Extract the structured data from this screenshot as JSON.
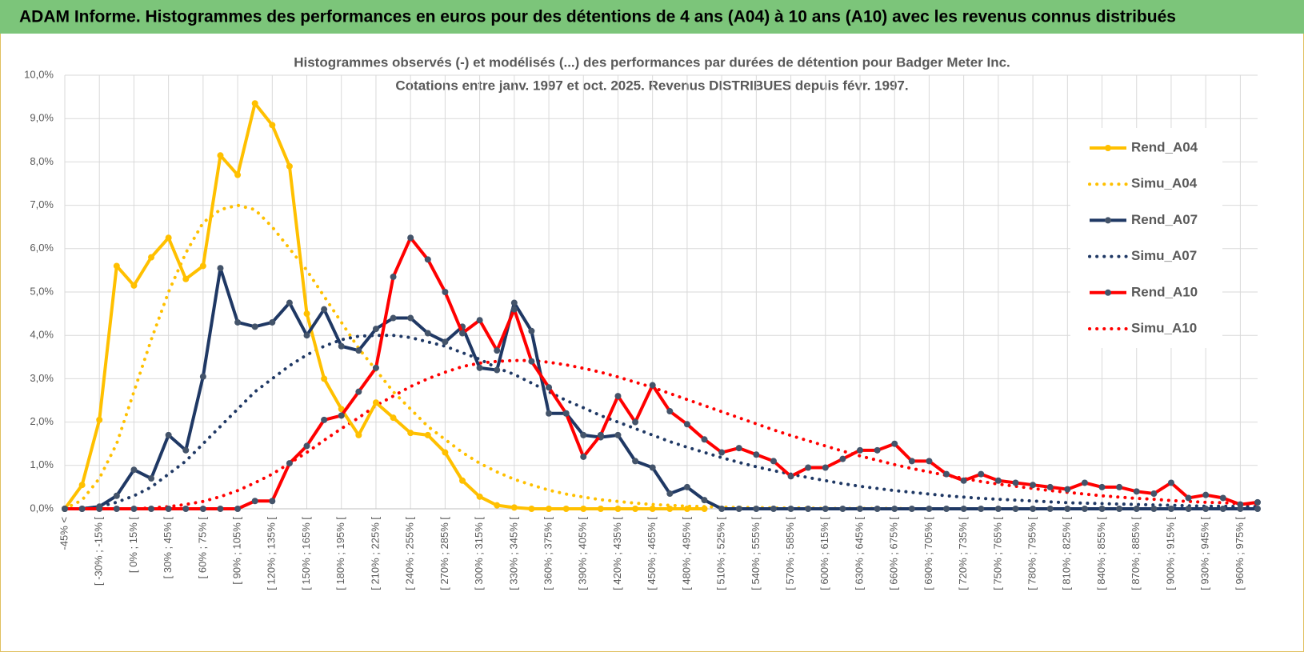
{
  "header": {
    "title": "ADAM Informe. Histogrammes des performances en euros pour des détentions de 4 ans (A04) à 10 ans (A10) avec les revenus connus distribués"
  },
  "chart_data": {
    "type": "line",
    "title": "Histogrammes observés (-) et modélisés (...) des performances par durées de détention pour Badger Meter Inc.",
    "subtitle": "Cotations entre janv. 1997 et oct. 2025. Revenus DISTRIBUES depuis févr. 1997.",
    "categories": [
      "-45% <",
      null,
      "[ -30% ; -15% [",
      null,
      "[ 0% ; 15% [",
      null,
      "[ 30% ; 45% [",
      null,
      "[ 60% ; 75% [",
      null,
      "[ 90% ; 105% [",
      null,
      "[ 120% ; 135% [",
      null,
      "[ 150% ; 165% [",
      null,
      "[ 180% ; 195% [",
      null,
      "[ 210% ; 225% [",
      null,
      "[ 240% ; 255% [",
      null,
      "[ 270% ; 285% [",
      null,
      "[ 300% ; 315% [",
      null,
      "[ 330% ; 345% [",
      null,
      "[ 360% ; 375% [",
      null,
      "[ 390% ; 405% [",
      null,
      "[ 420% ; 435% [",
      null,
      "[ 450% ; 465% [",
      null,
      "[ 480% ; 495% [",
      null,
      "[ 510% ; 525% [",
      null,
      "[ 540% ; 555% [",
      null,
      "[ 570% ; 585% [",
      null,
      "[ 600% ; 615% [",
      null,
      "[ 630% ; 645% [",
      null,
      "[ 660% ; 675% [",
      null,
      "[ 690% ; 705% [",
      null,
      "[ 720% ; 735% [",
      null,
      "[ 750% ; 765% [",
      null,
      "[ 780% ; 795% [",
      null,
      "[ 810% ; 825% [",
      null,
      "[ 840% ; 855% [",
      null,
      "[ 870% ; 885% [",
      null,
      "[ 900% ; 915% [",
      null,
      "[ 930% ; 945% [",
      null,
      "[ 960% ; 975% [",
      null
    ],
    "series": [
      {
        "name": "Rend_A04",
        "color": "#ffc000",
        "line_style": "solid",
        "markers": true,
        "values": [
          0,
          0.55,
          2.05,
          5.6,
          5.15,
          5.8,
          6.25,
          5.3,
          5.6,
          8.15,
          7.7,
          9.35,
          8.85,
          7.9,
          4.5,
          3.0,
          2.3,
          1.7,
          2.45,
          2.1,
          1.75,
          1.7,
          1.3,
          0.65,
          0.28,
          0.08,
          0.03,
          0,
          0,
          0,
          0,
          0,
          0,
          0,
          0,
          0,
          0,
          0,
          null,
          null,
          null,
          null,
          null,
          null,
          null,
          null,
          null,
          null,
          null,
          null,
          null,
          null,
          null,
          null,
          null,
          null,
          null,
          null,
          null,
          null,
          null,
          null,
          null,
          null,
          null,
          null,
          null,
          null,
          null,
          null
        ]
      },
      {
        "name": "Simu_A04",
        "color": "#ffc000",
        "line_style": "dotted",
        "markers": false,
        "values": [
          0,
          0.2,
          0.7,
          1.5,
          2.7,
          3.9,
          5.0,
          5.9,
          6.6,
          6.9,
          7.0,
          6.9,
          6.5,
          6.0,
          5.5,
          4.9,
          4.3,
          3.7,
          3.2,
          2.7,
          2.3,
          1.9,
          1.6,
          1.3,
          1.05,
          0.85,
          0.68,
          0.55,
          0.43,
          0.34,
          0.27,
          0.21,
          0.17,
          0.13,
          0.1,
          0.08,
          0.06,
          0.05,
          0.04,
          0.03,
          0.03,
          0.02,
          0.02,
          0.02,
          0.01,
          0.01,
          0.01,
          0.01,
          0.01,
          0,
          0,
          0,
          0,
          0,
          0,
          0,
          0,
          0,
          0,
          0,
          0,
          0,
          0,
          0,
          0,
          0,
          0,
          0,
          0,
          0
        ]
      },
      {
        "name": "Rend_A07",
        "color": "#1f3864",
        "line_style": "solid",
        "markers": true,
        "values": [
          0,
          0,
          0.05,
          0.3,
          0.9,
          0.7,
          1.7,
          1.35,
          3.05,
          5.55,
          4.3,
          4.2,
          4.3,
          4.75,
          4.0,
          4.6,
          3.75,
          3.65,
          4.15,
          4.4,
          4.4,
          4.05,
          3.85,
          4.2,
          3.25,
          3.2,
          4.75,
          4.1,
          2.2,
          2.2,
          1.7,
          1.65,
          1.7,
          1.1,
          0.95,
          0.35,
          0.5,
          0.2,
          0,
          0,
          0,
          0,
          0,
          0,
          0,
          0,
          0,
          0,
          0,
          0,
          0,
          0,
          0,
          0,
          0,
          0,
          0,
          0,
          0,
          0,
          0,
          0,
          0,
          0,
          0,
          0,
          0,
          0,
          0,
          0
        ]
      },
      {
        "name": "Simu_A07",
        "color": "#1f3864",
        "line_style": "dotted",
        "markers": false,
        "values": [
          0,
          0,
          0.05,
          0.15,
          0.3,
          0.5,
          0.8,
          1.1,
          1.5,
          1.9,
          2.3,
          2.7,
          3.0,
          3.3,
          3.55,
          3.75,
          3.9,
          3.98,
          4.0,
          4.0,
          3.95,
          3.85,
          3.75,
          3.6,
          3.45,
          3.25,
          3.1,
          2.9,
          2.7,
          2.5,
          2.33,
          2.15,
          2.0,
          1.85,
          1.7,
          1.55,
          1.42,
          1.3,
          1.18,
          1.07,
          0.97,
          0.88,
          0.8,
          0.72,
          0.65,
          0.58,
          0.52,
          0.47,
          0.42,
          0.38,
          0.34,
          0.3,
          0.27,
          0.24,
          0.22,
          0.2,
          0.18,
          0.16,
          0.14,
          0.13,
          0.12,
          0.11,
          0.1,
          0.09,
          0.08,
          0.07,
          0.06,
          0.06,
          0.05,
          0.05
        ]
      },
      {
        "name": "Rend_A10",
        "color": "#ff0000",
        "line_style": "solid",
        "markers": true,
        "values": [
          0,
          0,
          0,
          0,
          0,
          0,
          0,
          0,
          0,
          0,
          0,
          0.18,
          0.18,
          1.05,
          1.45,
          2.05,
          2.15,
          2.7,
          3.25,
          5.35,
          6.25,
          5.75,
          5.0,
          4.05,
          4.35,
          3.65,
          4.6,
          3.4,
          2.8,
          2.2,
          1.2,
          1.7,
          2.6,
          2.0,
          2.85,
          2.25,
          1.95,
          1.6,
          1.3,
          1.4,
          1.25,
          1.1,
          0.75,
          0.95,
          0.95,
          1.15,
          1.35,
          1.35,
          1.5,
          1.1,
          1.1,
          0.8,
          0.65,
          0.8,
          0.65,
          0.6,
          0.55,
          0.5,
          0.45,
          0.6,
          0.5,
          0.5,
          0.4,
          0.35,
          0.6,
          0.25,
          0.32,
          0.25,
          0.1,
          0.15
        ]
      },
      {
        "name": "Simu_A10",
        "color": "#ff0000",
        "line_style": "dotted",
        "markers": false,
        "values": [
          0,
          0,
          0,
          0,
          0,
          0.02,
          0.05,
          0.1,
          0.17,
          0.28,
          0.42,
          0.6,
          0.8,
          1.05,
          1.3,
          1.58,
          1.85,
          2.1,
          2.38,
          2.6,
          2.82,
          3.0,
          3.15,
          3.28,
          3.36,
          3.4,
          3.42,
          3.42,
          3.38,
          3.32,
          3.24,
          3.15,
          3.04,
          2.92,
          2.8,
          2.66,
          2.52,
          2.38,
          2.24,
          2.1,
          1.96,
          1.82,
          1.69,
          1.57,
          1.45,
          1.33,
          1.22,
          1.12,
          1.02,
          0.93,
          0.85,
          0.77,
          0.7,
          0.63,
          0.57,
          0.52,
          0.47,
          0.42,
          0.38,
          0.34,
          0.3,
          0.27,
          0.24,
          0.22,
          0.19,
          0.17,
          0.15,
          0.14,
          0.12,
          0.11
        ]
      }
    ],
    "ylim": [
      0,
      10
    ],
    "yticks": [
      {
        "value": 0,
        "label": "0,0%"
      },
      {
        "value": 1,
        "label": "1,0%"
      },
      {
        "value": 2,
        "label": "2,0%"
      },
      {
        "value": 3,
        "label": "3,0%"
      },
      {
        "value": 4,
        "label": "4,0%"
      },
      {
        "value": 5,
        "label": "5,0%"
      },
      {
        "value": 6,
        "label": "6,0%"
      },
      {
        "value": 7,
        "label": "7,0%"
      },
      {
        "value": 8,
        "label": "8,0%"
      },
      {
        "value": 9,
        "label": "9,0%"
      },
      {
        "value": 10,
        "label": "10,0%"
      }
    ],
    "grid": true,
    "legend": "right"
  }
}
